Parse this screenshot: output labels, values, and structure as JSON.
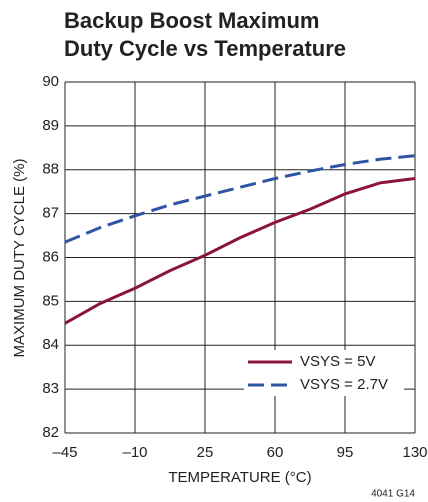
{
  "chart_data": {
    "type": "line",
    "title": [
      "Backup Boost Maximum",
      "Duty Cycle vs Temperature"
    ],
    "xlabel": "TEMPERATURE (°C)",
    "ylabel": "MAXIMUM DUTY CYCLE (%)",
    "note": "4041 G14",
    "x": [
      -45,
      -27.5,
      -10,
      7.5,
      25,
      42.5,
      60,
      77.5,
      95,
      112.5,
      130
    ],
    "series": [
      {
        "name": "VSYS = 5V",
        "color": "#8b1538",
        "dash": false,
        "values": [
          84.5,
          84.95,
          85.3,
          85.7,
          86.05,
          86.45,
          86.8,
          87.1,
          87.45,
          87.7,
          87.8
        ]
      },
      {
        "name": "VSYS = 2.7V",
        "color": "#2e55a4",
        "dash": true,
        "values": [
          86.35,
          86.68,
          86.95,
          87.2,
          87.4,
          87.6,
          87.8,
          87.97,
          88.12,
          88.24,
          88.32
        ]
      }
    ],
    "xlim": [
      -45,
      130
    ],
    "xticks": [
      {
        "value": -45,
        "label": "–45"
      },
      {
        "value": -10,
        "label": "–10"
      },
      25,
      60,
      95,
      130
    ],
    "ylim": [
      82,
      90
    ],
    "yticks": [
      82,
      83,
      84,
      85,
      86,
      87,
      88,
      89,
      90
    ],
    "grid": true,
    "legend": "lower right"
  }
}
